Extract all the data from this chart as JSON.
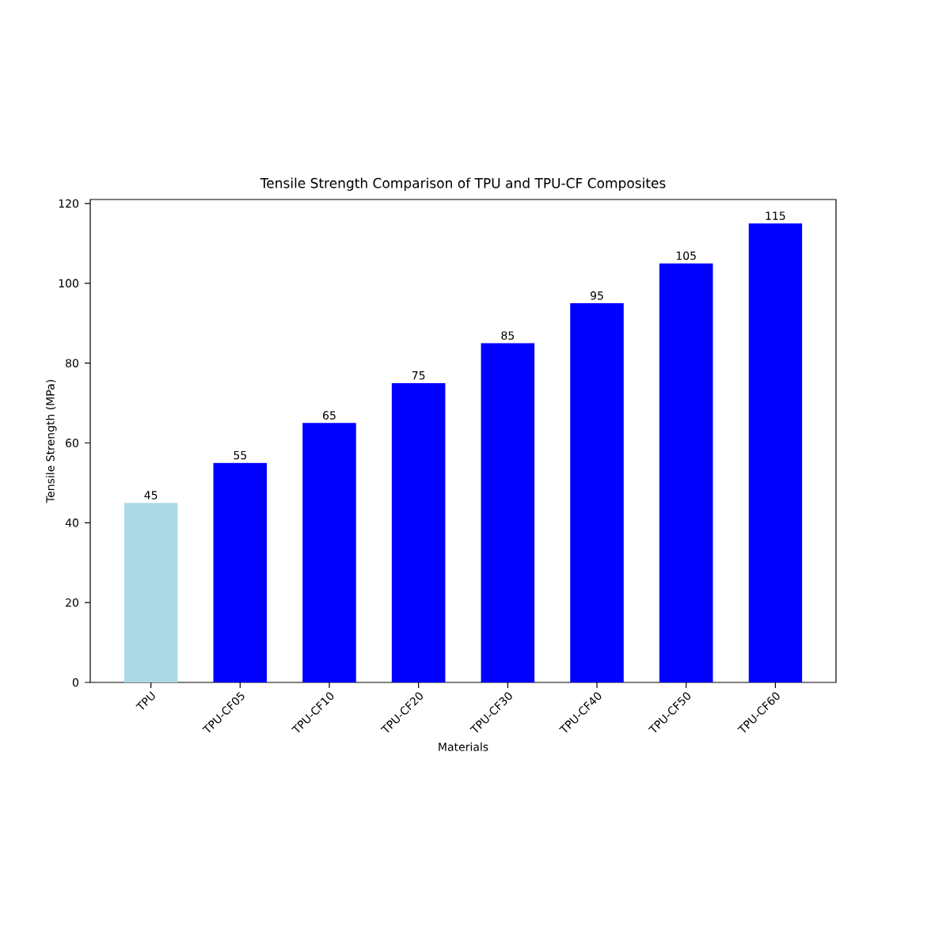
{
  "chart_data": {
    "type": "bar",
    "title": "Tensile Strength Comparison of TPU and TPU-CF Composites",
    "xlabel": "Materials",
    "ylabel": "Tensile Strength (MPa)",
    "categories": [
      "TPU",
      "TPU-CF05",
      "TPU-CF10",
      "TPU-CF20",
      "TPU-CF30",
      "TPU-CF40",
      "TPU-CF50",
      "TPU-CF60"
    ],
    "values": [
      45,
      55,
      65,
      75,
      85,
      95,
      105,
      115
    ],
    "colors": [
      "#add8e6",
      "#0000ff",
      "#0000ff",
      "#0000ff",
      "#0000ff",
      "#0000ff",
      "#0000ff",
      "#0000ff"
    ],
    "ylim": [
      0,
      121
    ],
    "yticks": [
      0,
      20,
      40,
      60,
      80,
      100,
      120
    ],
    "data_labels": true,
    "grid": false
  }
}
